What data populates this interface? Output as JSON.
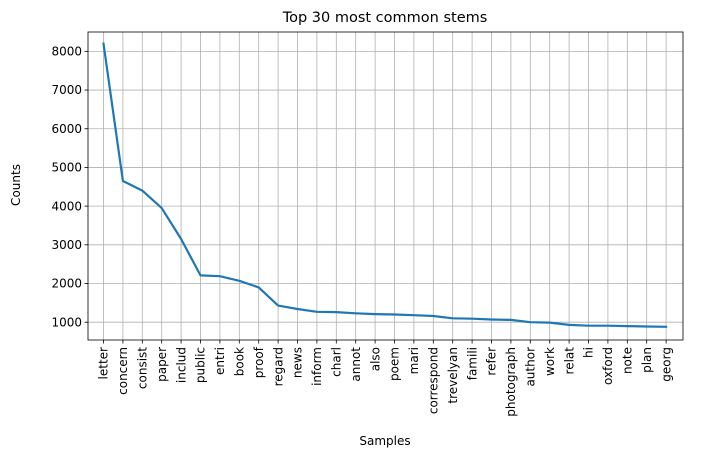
{
  "chart_data": {
    "type": "line",
    "title": "Top 30 most common stems",
    "xlabel": "Samples",
    "ylabel": "Counts",
    "ylim": [
      540,
      8500
    ],
    "yticks": [
      1000,
      2000,
      3000,
      4000,
      5000,
      6000,
      7000,
      8000
    ],
    "grid": true,
    "series_color": "#1f77b4",
    "categories": [
      "letter",
      "concern",
      "consist",
      "paper",
      "includ",
      "public",
      "entri",
      "book",
      "proof",
      "regard",
      "news",
      "inform",
      "charl",
      "annot",
      "also",
      "poem",
      "mari",
      "correspond",
      "trevelyan",
      "famili",
      "refer",
      "photograph",
      "author",
      "work",
      "relat",
      "hi",
      "oxford",
      "note",
      "plan",
      "georg"
    ],
    "values": [
      8200,
      4650,
      4400,
      3950,
      3150,
      2210,
      2190,
      2070,
      1900,
      1430,
      1340,
      1270,
      1260,
      1230,
      1210,
      1200,
      1180,
      1160,
      1100,
      1090,
      1070,
      1060,
      1000,
      990,
      930,
      910,
      910,
      900,
      890,
      880
    ]
  }
}
